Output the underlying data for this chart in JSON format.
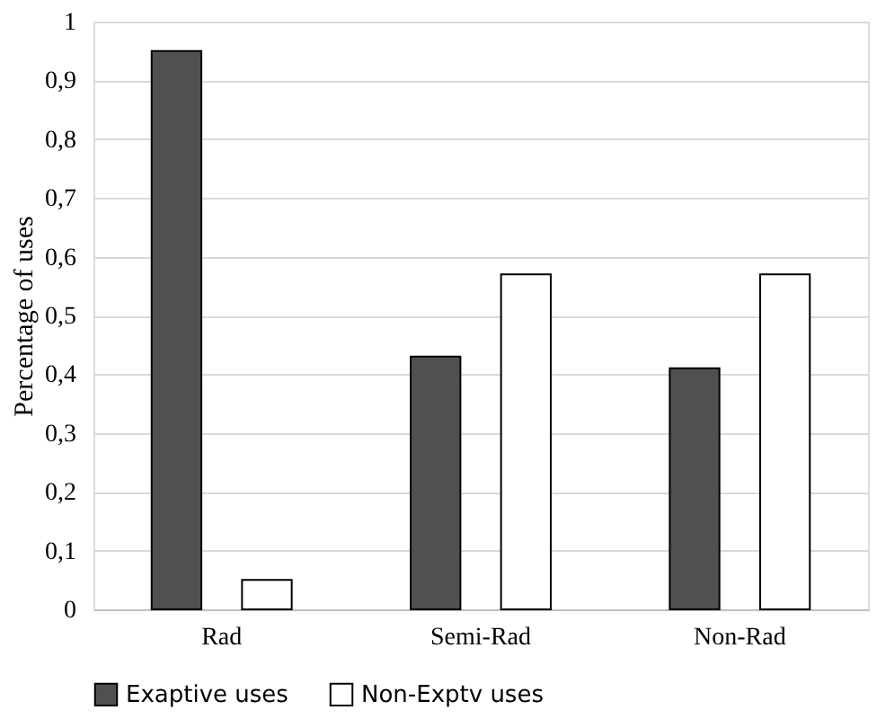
{
  "chart_data": {
    "type": "bar",
    "ylabel": "Percentage of uses",
    "categories": [
      "Rad",
      "Semi-Rad",
      "Non-Rad"
    ],
    "series": [
      {
        "name": "Exaptive uses",
        "color": "#505050",
        "values": [
          0.95,
          0.43,
          0.41
        ]
      },
      {
        "name": "Non-Exptv uses",
        "color": "#ffffff",
        "values": [
          0.05,
          0.57,
          0.57
        ]
      }
    ],
    "ylim": [
      0,
      1
    ],
    "yticks": [
      0,
      {
        "value": 0.1,
        "label": "0,1"
      },
      {
        "value": 0.2,
        "label": "0,2"
      },
      {
        "value": 0.3,
        "label": "0,3"
      },
      {
        "value": 0.4,
        "label": "0,4"
      },
      {
        "value": 0.5,
        "label": "0,5"
      },
      {
        "value": 0.6,
        "label": "0,6"
      },
      {
        "value": 0.7,
        "label": "0,7"
      },
      {
        "value": 0.8,
        "label": "0,8"
      },
      {
        "value": 0.9,
        "label": "0,9"
      },
      1
    ],
    "grid": "y",
    "legend": "bottom"
  }
}
